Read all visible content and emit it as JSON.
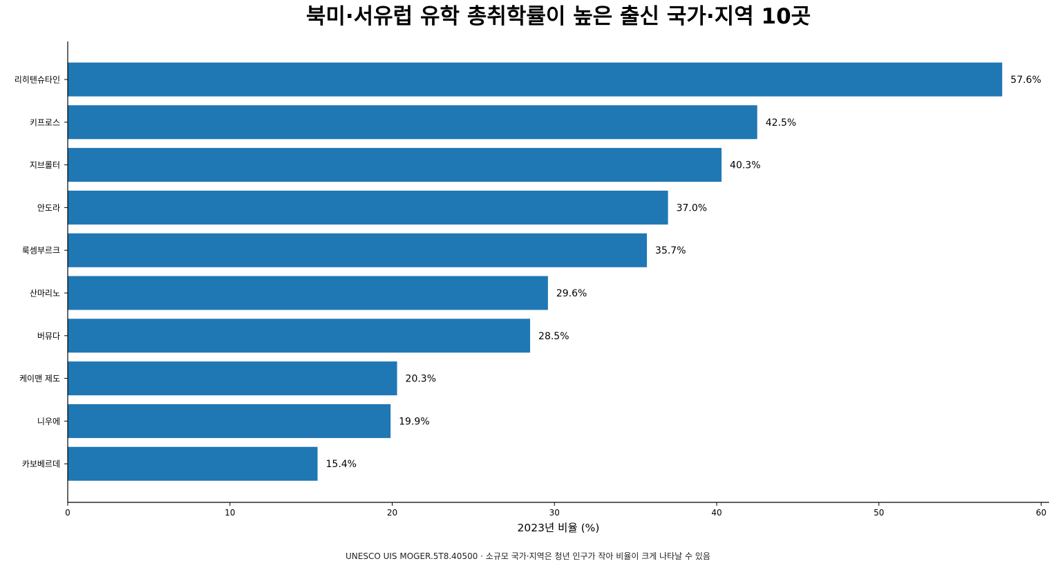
{
  "chart_data": {
    "type": "bar",
    "orientation": "horizontal",
    "title": "북미·서유럽 유학 총취학률이 높은 출신 국가·지역 10곳",
    "xlabel": "2023년 비율 (%)",
    "ylabel": "",
    "xlim": [
      0,
      60
    ],
    "xticks": [
      0,
      10,
      20,
      30,
      40,
      50,
      60
    ],
    "categories": [
      "리히텐슈타인",
      "키프로스",
      "지브롤터",
      "안도라",
      "룩셈부르크",
      "산마리노",
      "버뮤다",
      "케이맨 제도",
      "니우에",
      "카보베르데"
    ],
    "values": [
      57.6,
      42.5,
      40.3,
      37.0,
      35.7,
      29.6,
      28.5,
      20.3,
      19.9,
      15.4
    ],
    "value_labels": [
      "57.6%",
      "42.5%",
      "40.3%",
      "37.0%",
      "35.7%",
      "29.6%",
      "28.5%",
      "20.3%",
      "19.9%",
      "15.4%"
    ],
    "bar_color": "#1f77b4",
    "grid": false,
    "footnote": "UNESCO UIS MOGER.5T8.40500 · 소규모 국가·지역은 청년 인구가 작아 비율이 크게 나타날 수 있음"
  }
}
